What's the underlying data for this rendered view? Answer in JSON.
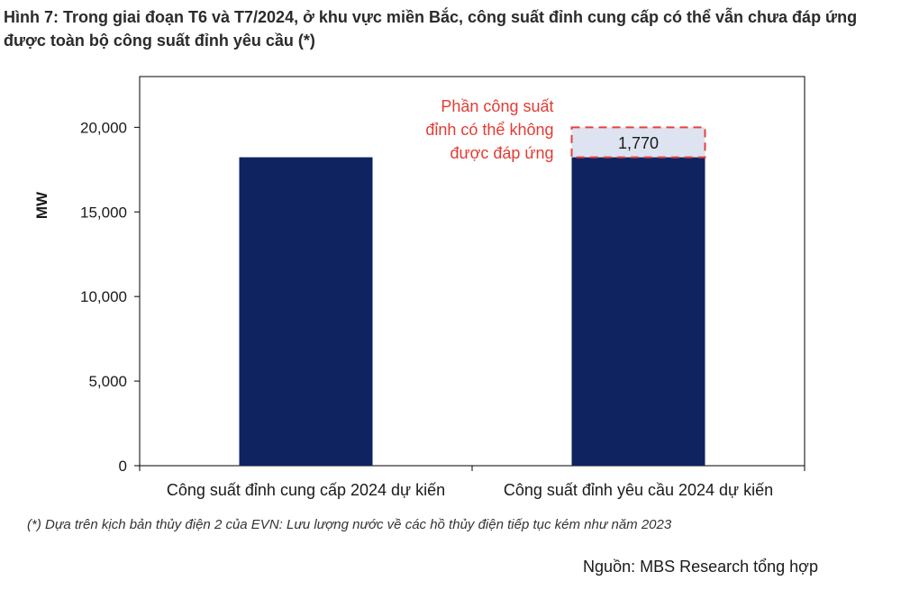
{
  "figure": {
    "title": "Hình 7: Trong giai đoạn T6 và T7/2024, ở khu vực miền Bắc, công suất đỉnh cung cấp có thể vẫn chưa đáp ứng được toàn bộ công suất đỉnh yêu cầu (*)",
    "footnote": "(*) Dựa trên kịch bản thủy điện 2 của EVN: Lưu lượng nước về các hồ thủy điện tiếp tục kém như năm 2023",
    "source": "Nguồn: MBS Research tổng hợp"
  },
  "chart_data": {
    "type": "bar",
    "categories": [
      "Công suất đỉnh cung cấp 2024 dự kiến",
      "Công suất đỉnh yêu cầu 2024 dự kiến"
    ],
    "values": [
      18230,
      18230
    ],
    "gap": {
      "category_index": 1,
      "value": 1770,
      "label": "1,770"
    },
    "annotation": [
      "Phần công suất",
      "đỉnh có thể không",
      "được đáp ứng"
    ],
    "ylabel": "MW",
    "ylim": [
      0,
      23000
    ],
    "yticks": [
      0,
      5000,
      10000,
      15000,
      20000
    ],
    "ytick_labels": [
      "0",
      "5,000",
      "10,000",
      "15,000",
      "20,000"
    ],
    "grid": false,
    "colors": {
      "bar": "#0e2360",
      "gap_fill": "#dde3f0",
      "gap_border": "#e8403a",
      "annotation": "#e23c34"
    }
  }
}
